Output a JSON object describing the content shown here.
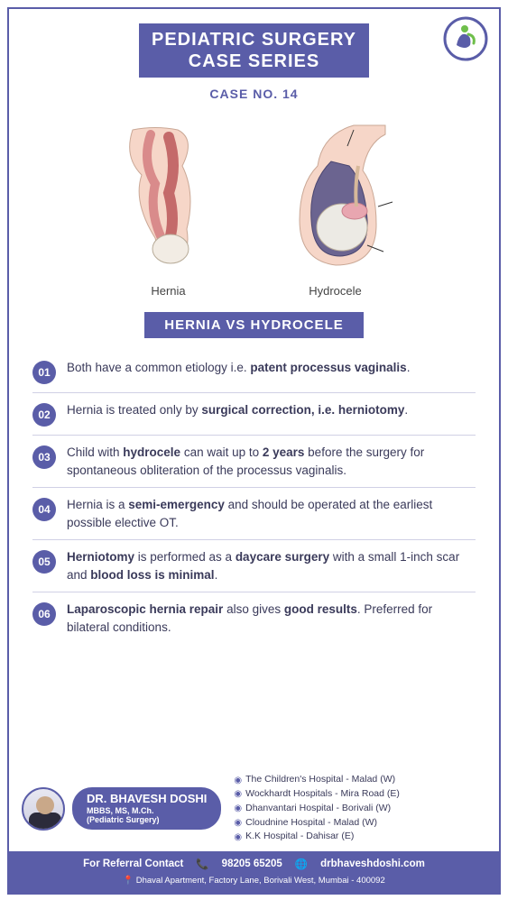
{
  "colors": {
    "brand": "#5a5da8",
    "text": "#3a3a5a",
    "divider": "#d0d0e5",
    "bg": "#ffffff"
  },
  "header": {
    "title_line1": "PEDIATRIC SURGERY",
    "title_line2": "CASE SERIES",
    "case_label": "CASE NO. 14"
  },
  "diagrams": {
    "left_label": "Hernia",
    "right_label": "Hydrocele"
  },
  "section_title": "HERNIA VS HYDROCELE",
  "points": [
    {
      "num": "01",
      "html": "Both have a common etiology i.e. <b>patent processus vaginalis</b>."
    },
    {
      "num": "02",
      "html": "Hernia is treated only by <b>surgical correction, i.e. herniotomy</b>."
    },
    {
      "num": "03",
      "html": "Child with <b>hydrocele</b> can wait up to <b>2 years</b> before the surgery for spontaneous obliteration of the processus vaginalis."
    },
    {
      "num": "04",
      "html": "Hernia is a <b>semi-emergency</b> and should be operated at the earliest possible elective OT."
    },
    {
      "num": "05",
      "html": "<b>Herniotomy</b> is performed as a <b>daycare surgery</b> with a small 1-inch scar and <b>blood loss is minimal</b>."
    },
    {
      "num": "06",
      "html": "<b>Laparoscopic hernia repair</b> also gives <b>good results</b>. Preferred for bilateral conditions."
    }
  ],
  "doctor": {
    "name": "DR. BHAVESH DOSHI",
    "credentials": "MBBS, MS,  M.Ch.",
    "specialty": "(Pediatric Surgery)"
  },
  "hospitals": [
    "The Children's Hospital - Malad (W)",
    "Wockhardt Hospitals - Mira Road (E)",
    "Dhanvantari Hospital - Borivali (W)",
    "Cloudnine Hospital - Malad (W)",
    "K.K Hospital - Dahisar (E)"
  ],
  "contact": {
    "label": "For Referral Contact",
    "phone": "98205 65205",
    "website": "drbhaveshdoshi.com"
  },
  "address": "Dhaval Apartment, Factory Lane, Borivali West, Mumbai - 400092"
}
